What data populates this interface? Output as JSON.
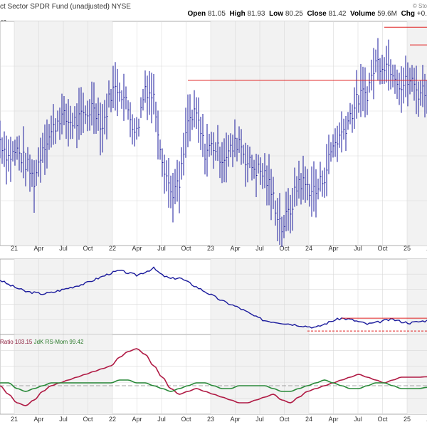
{
  "header": {
    "title": "ct Sector SPDR Fund (unadjusted)  NYSE",
    "stats": [
      {
        "label": "Open",
        "value": "81.05"
      },
      {
        "label": "High",
        "value": "81.93"
      },
      {
        "label": "Low",
        "value": "80.25"
      },
      {
        "label": "Close",
        "value": "81.42"
      },
      {
        "label": "Volume",
        "value": "59.6M"
      },
      {
        "label": "Chg",
        "value": "+0."
      }
    ],
    "logo": "© Sto",
    "last_label": "42"
  },
  "rs_panel_label": {
    "ratio": "Ratio 103.15",
    "mom": "JdK RS-Mom 99.42"
  },
  "x_axis_labels": [
    "21",
    "Apr",
    "Jul",
    "Oct",
    "22",
    "Apr",
    "Jul",
    "Oct",
    "23",
    "Apr",
    "Jul",
    "Oct",
    "24",
    "Apr",
    "Jul",
    "Oct",
    "25",
    "Apr"
  ],
  "colors": {
    "price": "#1a1a9c",
    "resistance": "#e02020",
    "ratio": "#b01a44",
    "momentum": "#2a8a3a",
    "grid": "#d9d9d9",
    "panel_bg": "#f2f2f2"
  },
  "chart_data": [
    {
      "type": "line",
      "title": "Price (OHLC bars, weekly closes approximated)",
      "x": [
        "2021-01",
        "2021-02",
        "2021-03",
        "2021-04",
        "2021-05",
        "2021-06",
        "2021-07",
        "2021-08",
        "2021-09",
        "2021-10",
        "2021-11",
        "2021-12",
        "2022-01",
        "2022-02",
        "2022-03",
        "2022-04",
        "2022-05",
        "2022-06",
        "2022-07",
        "2022-08",
        "2022-09",
        "2022-10",
        "2022-11",
        "2022-12",
        "2023-01",
        "2023-02",
        "2023-03",
        "2023-04",
        "2023-05",
        "2023-06",
        "2023-07",
        "2023-08",
        "2023-09",
        "2023-10",
        "2023-11",
        "2023-12",
        "2024-01",
        "2024-02",
        "2024-03",
        "2024-04",
        "2024-05",
        "2024-06",
        "2024-07",
        "2024-08",
        "2024-09",
        "2024-10",
        "2024-11",
        "2024-12",
        "2025-01",
        "2025-02",
        "2025-03"
      ],
      "series": [
        {
          "values": [
            73,
            70,
            71,
            69,
            66,
            72,
            74,
            77,
            76,
            76,
            77,
            79,
            75,
            81,
            82,
            78,
            74,
            82,
            80,
            70,
            64,
            65,
            76,
            77,
            71,
            72,
            70,
            71,
            73,
            69,
            68,
            67,
            63,
            58,
            61,
            66,
            65,
            64,
            67,
            72,
            74,
            77,
            80,
            81,
            86,
            86,
            85,
            82,
            83,
            81,
            81.4
          ]
        }
      ],
      "ylim": [
        55,
        93
      ],
      "resistance_lines": [
        {
          "from": "2022-11",
          "to": "2025-03",
          "value": 83.0
        },
        {
          "from": "2024-10",
          "to": "2025-03",
          "value": 92.0
        },
        {
          "from": "2025-01",
          "to": "2025-03",
          "value": 89.0
        }
      ]
    },
    {
      "type": "line",
      "title": "Relative Strength",
      "series": [
        {
          "values": [
            62,
            58,
            55,
            52,
            51,
            50,
            51,
            53,
            55,
            57,
            59,
            62,
            65,
            68,
            70,
            68,
            66,
            69,
            72,
            66,
            63,
            64,
            60,
            56,
            52,
            48,
            44,
            41,
            38,
            34,
            30,
            27,
            26,
            25,
            24,
            23,
            22,
            21,
            24,
            27,
            29,
            28,
            26,
            24,
            25,
            27,
            28,
            26,
            25,
            26,
            27
          ]
        }
      ],
      "ylim": [
        15,
        80
      ],
      "support_line": {
        "from": "2024-01",
        "to": "2025-03",
        "value": 18
      },
      "resistance_line": {
        "from": "2024-05",
        "to": "2025-03",
        "value": 29
      }
    },
    {
      "type": "line",
      "title": "RRG lines",
      "series": [
        {
          "name": "Ratio 103.15",
          "values": [
            100,
            97,
            94,
            93,
            95,
            98,
            100,
            101,
            102,
            103,
            104,
            105,
            106,
            107,
            110,
            112,
            113,
            111,
            107,
            103,
            99,
            97,
            98,
            99,
            98,
            97,
            96,
            95,
            94,
            94,
            95,
            96,
            97,
            95,
            94,
            96,
            98,
            99,
            100,
            101,
            102,
            103,
            104,
            103,
            102,
            101,
            102,
            103,
            103,
            103,
            103.15
          ]
        },
        {
          "name": "JdK RS-Mom 99.42",
          "values": [
            101,
            101,
            99,
            98,
            99,
            100,
            101,
            101,
            101,
            101,
            101,
            101,
            101,
            101,
            102,
            102,
            101,
            101,
            100,
            99,
            98,
            99,
            100,
            101,
            101,
            100,
            99,
            99,
            100,
            100,
            100,
            100,
            99,
            98,
            98,
            99,
            100,
            101,
            102,
            101,
            100,
            99,
            99,
            100,
            101,
            101,
            100,
            99,
            99,
            99,
            99.42
          ]
        }
      ],
      "ylim": [
        90,
        118
      ],
      "reference_line": 100
    }
  ]
}
